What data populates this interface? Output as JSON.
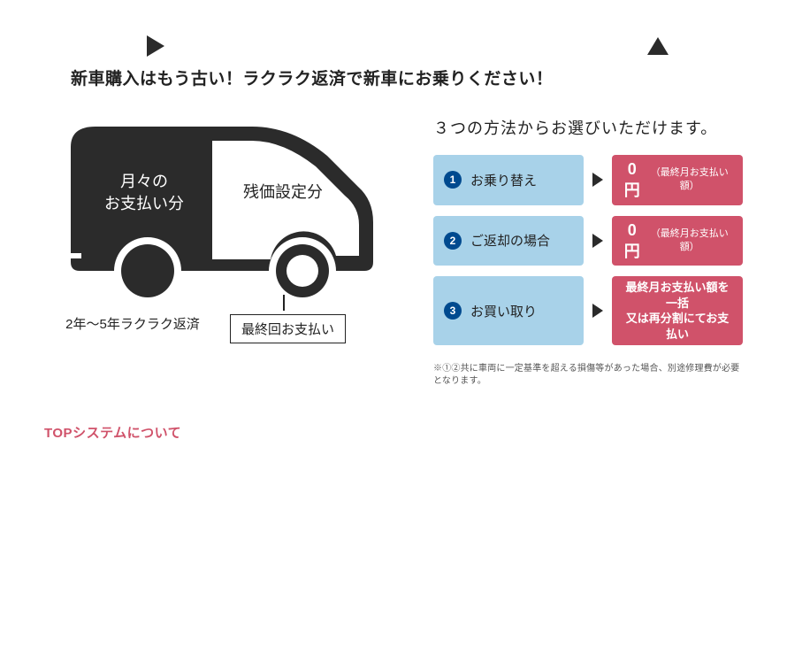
{
  "headline": "新車購入はもう古い！ラクラク返済で新車にお乗りください！",
  "colors": {
    "text": "#222222",
    "car_fill": "#2b2b2b",
    "car_inner": "#ffffff",
    "blue_bg": "#a8d2e9",
    "blue_num_bg": "#004a8f",
    "blue_num_fg": "#ffffff",
    "red_bg": "#d0526a",
    "red_fg": "#ffffff",
    "arrow_dark": "#2b2b2b",
    "section_red": "#d0526a"
  },
  "car": {
    "monthly": "月々の\nお支払い分",
    "residual": "残価設定分",
    "sub_left": "2年〜5年ラクラク返済",
    "sub_right": "最終回お支払い"
  },
  "options": {
    "title": "３つの方法からお選びいただけます。",
    "rows": [
      {
        "num": "1",
        "label": "お乗り替え",
        "right_big": "0円",
        "right_small": "（最終月お支払い額）"
      },
      {
        "num": "2",
        "label": "ご返却の場合",
        "right_big": "0円",
        "right_small": "（最終月お支払い額）"
      },
      {
        "num": "3",
        "label": "お買い取り",
        "right_text": "最終月お支払い額を一括\n又は再分割にてお支払い"
      }
    ]
  },
  "disclaimer": "※①②共に車両に一定基準を超える損傷等があった場合、別途修理費が必要となります。",
  "section_label": "TOPシステムについて"
}
